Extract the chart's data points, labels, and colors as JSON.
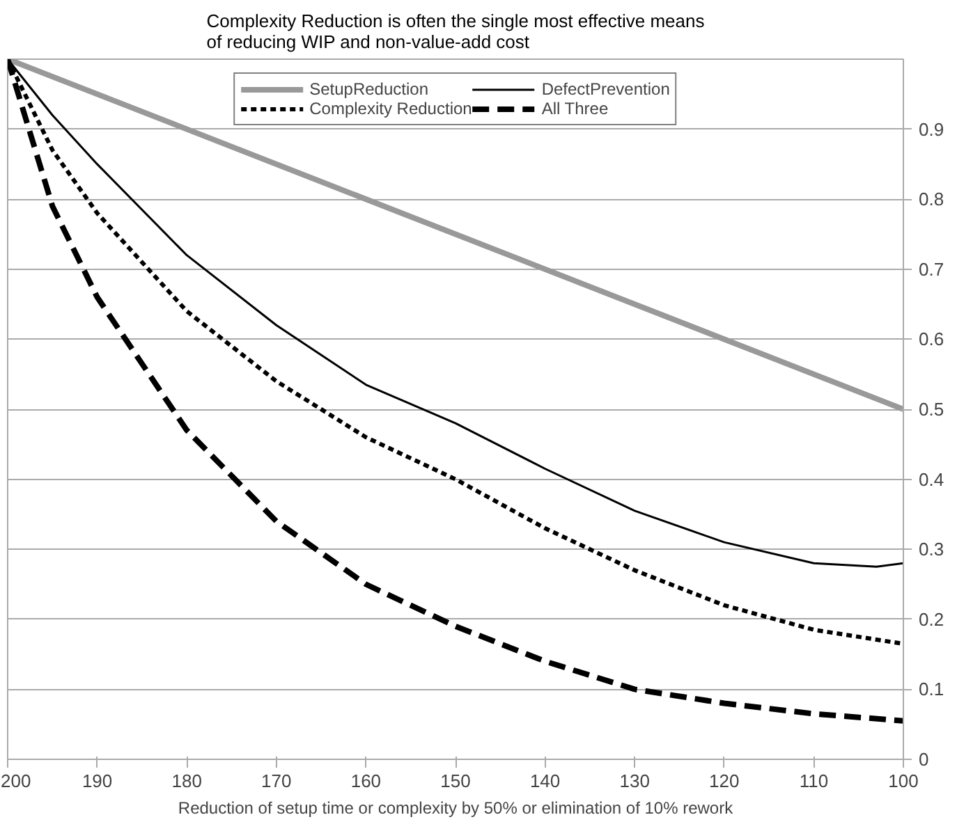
{
  "chart_data": {
    "type": "line",
    "title": "Complexity Reduction is often the single most effective means\nof reducing WIP and non-value-add cost",
    "xlabel": "Reduction of setup time or complexity by 50% or elimination of 10% rework",
    "xlim": [
      200,
      100
    ],
    "xticks": [
      200,
      190,
      180,
      170,
      160,
      150,
      140,
      130,
      120,
      110,
      100
    ],
    "ylim": [
      0,
      1
    ],
    "yticks": [
      0,
      0.1,
      0.2,
      0.3,
      0.4,
      0.5,
      0.6,
      0.7,
      0.8,
      0.9
    ],
    "grid": "y",
    "legend": "top",
    "marker": "none",
    "series": [
      {
        "name": "SetupReduction",
        "color": "#999999",
        "line_style": "solid",
        "x": [
          200,
          100
        ],
        "values": [
          1,
          0.5
        ]
      },
      {
        "name": "Complexity Reduction",
        "color": "#000000",
        "line_style": "dotted",
        "x": [
          200,
          195,
          190,
          180,
          170,
          160,
          150,
          140,
          130,
          120,
          110,
          100
        ],
        "values": [
          1,
          0.87,
          0.78,
          0.64,
          0.54,
          0.46,
          0.4,
          0.33,
          0.27,
          0.22,
          0.185,
          0.165
        ]
      },
      {
        "name": "DefectPrevention",
        "color": "#000000",
        "line_style": "solid",
        "x": [
          200,
          195,
          190,
          180,
          170,
          160,
          150,
          140,
          130,
          120,
          110,
          103,
          100
        ],
        "values": [
          1,
          0.92,
          0.85,
          0.72,
          0.62,
          0.535,
          0.48,
          0.415,
          0.355,
          0.31,
          0.28,
          0.275,
          0.28
        ]
      },
      {
        "name": "All Three",
        "color": "#000000",
        "line_style": "dashed",
        "x": [
          200,
          195,
          190,
          180,
          170,
          160,
          150,
          140,
          130,
          120,
          110,
          100
        ],
        "values": [
          1,
          0.79,
          0.66,
          0.47,
          0.34,
          0.25,
          0.19,
          0.14,
          0.1,
          0.08,
          0.065,
          0.055
        ]
      }
    ]
  }
}
